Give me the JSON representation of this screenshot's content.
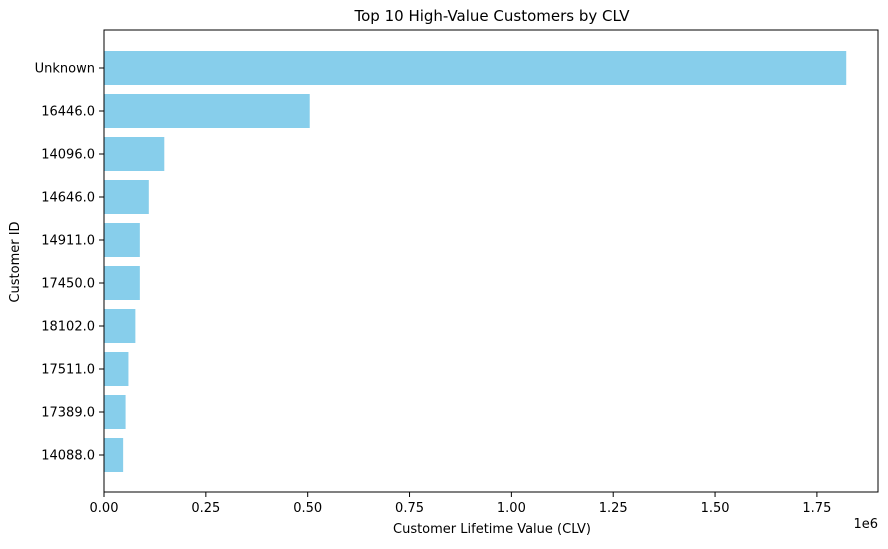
{
  "chart_data": {
    "type": "bar",
    "orientation": "horizontal",
    "title": "Top 10 High-Value Customers by CLV",
    "xlabel": "Customer Lifetime Value (CLV)",
    "ylabel": "Customer ID",
    "x_offset_label": "1e6",
    "xlim": [
      0,
      1.9
    ],
    "xticks": [
      0.0,
      0.25,
      0.5,
      0.75,
      1.0,
      1.25,
      1.5,
      1.75
    ],
    "xtick_labels": [
      "0.00",
      "0.25",
      "0.50",
      "0.75",
      "1.00",
      "1.25",
      "1.50",
      "1.75"
    ],
    "categories": [
      "Unknown",
      "16446.0",
      "14096.0",
      "14646.0",
      "14911.0",
      "17450.0",
      "18102.0",
      "17511.0",
      "17389.0",
      "14088.0"
    ],
    "values": [
      1.822,
      0.505,
      0.148,
      0.11,
      0.088,
      0.088,
      0.077,
      0.06,
      0.053,
      0.047
    ],
    "bar_color": "#87ceeb",
    "grid": false,
    "legend": "none"
  }
}
